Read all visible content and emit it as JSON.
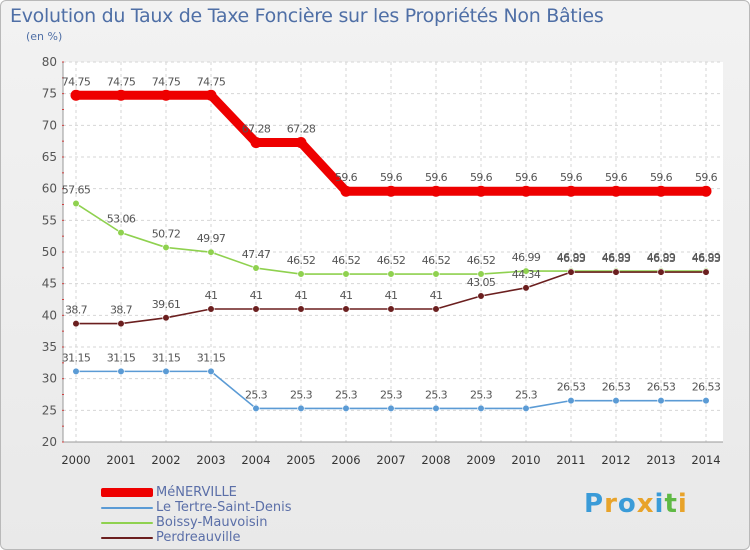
{
  "chart_data": {
    "type": "line",
    "title": "Evolution du Taux de Taxe Foncière sur les Propriétés Non Bâties",
    "ylabel": "(en %)",
    "xlabel": "",
    "ylim": [
      20,
      80
    ],
    "yticks": [
      20,
      25,
      30,
      35,
      40,
      45,
      50,
      55,
      60,
      65,
      70,
      75,
      80
    ],
    "x": [
      "2000",
      "2001",
      "2002",
      "2003",
      "2004",
      "2005",
      "2006",
      "2007",
      "2008",
      "2009",
      "2010",
      "2011",
      "2012",
      "2013",
      "2014"
    ],
    "series": [
      {
        "name": "MéNERVILLE",
        "color": "#ee0000",
        "values": [
          74.75,
          74.75,
          74.75,
          74.75,
          67.28,
          67.28,
          59.6,
          59.6,
          59.6,
          59.6,
          59.6,
          59.6,
          59.6,
          59.6,
          59.6
        ],
        "labels": [
          "74.75",
          "74.75",
          "74.75",
          "74.75",
          "67.28",
          "67.28",
          "59.6",
          "59.6",
          "59.6",
          "59.6",
          "59.6",
          "59.6",
          "59.6",
          "59.6",
          "59.6"
        ]
      },
      {
        "name": "Le Tertre-Saint-Denis",
        "color": "#5b9bd5",
        "values": [
          31.15,
          31.15,
          31.15,
          31.15,
          25.3,
          25.3,
          25.3,
          25.3,
          25.3,
          25.3,
          25.3,
          26.53,
          26.53,
          26.53,
          26.53
        ],
        "labels": [
          "31.15",
          "31.15",
          "31.15",
          "31.15",
          "25.3",
          "25.3",
          "25.3",
          "25.3",
          "25.3",
          "25.3",
          "25.3",
          "26.53",
          "26.53",
          "26.53",
          "26.53"
        ]
      },
      {
        "name": "Boissy-Mauvoisin",
        "color": "#8fd14f",
        "values": [
          57.65,
          53.06,
          50.72,
          49.97,
          47.47,
          46.52,
          46.52,
          46.52,
          46.52,
          46.52,
          46.99,
          46.99,
          46.99,
          46.99,
          46.99
        ],
        "labels": [
          "57.65",
          "53.06",
          "50.72",
          "49.97",
          "47.47",
          "46.52",
          "46.52",
          "46.52",
          "46.52",
          "46.52",
          "46.99",
          "46.99",
          "46.99",
          "46.99",
          "46.99"
        ]
      },
      {
        "name": "Perdreauville",
        "color": "#6b1f1f",
        "values": [
          38.7,
          38.7,
          39.61,
          41,
          41,
          41,
          41,
          41,
          41,
          43.05,
          44.34,
          46.83,
          46.83,
          46.83,
          46.83
        ],
        "labels": [
          "38.7",
          "38.7",
          "39.61",
          "41",
          "41",
          "41",
          "41",
          "41",
          "41",
          "43.05",
          "44.34",
          "46.83",
          "46.83",
          "46.83",
          "46.83"
        ]
      }
    ]
  },
  "brand": {
    "letters": [
      "P",
      "r",
      "o",
      "x",
      "i",
      "t",
      "i"
    ],
    "colors": [
      "#3a9bd8",
      "#e8a32a",
      "#3a9bd8",
      "#e8a32a",
      "#3a9bd8",
      "#5fb944",
      "#e8a32a"
    ]
  }
}
